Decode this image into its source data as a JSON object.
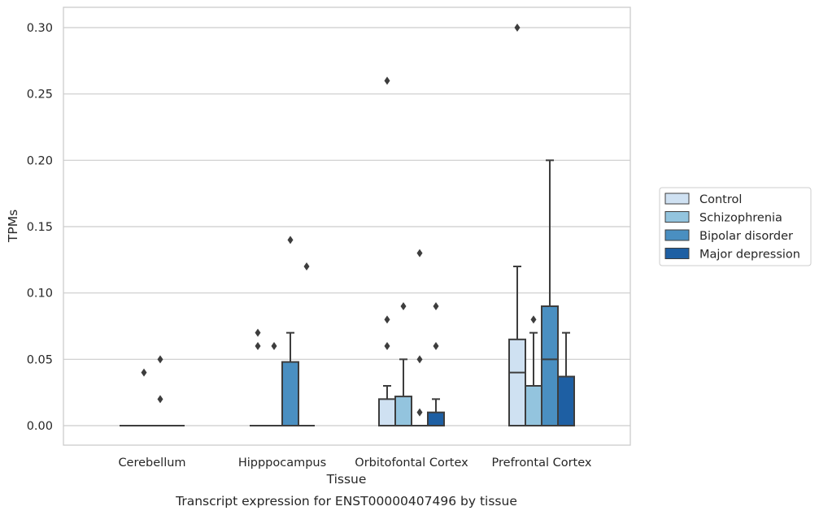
{
  "chart_data": {
    "type": "box",
    "xlabel": "Tissue",
    "ylabel": "TPMs",
    "caption": "Transcript expression for ENST00000407496 by tissue",
    "ylim": [
      -0.015,
      0.315
    ],
    "yticks": [
      0.0,
      0.05,
      0.1,
      0.15,
      0.2,
      0.25,
      0.3
    ],
    "ytick_labels": [
      "0.00",
      "0.05",
      "0.10",
      "0.15",
      "0.20",
      "0.25",
      "0.30"
    ],
    "grid": "horizontal",
    "legend_position": "right",
    "categories": [
      "Cerebellum",
      "Hipppocampus",
      "Orbitofontal Cortex",
      "Prefrontal Cortex"
    ],
    "series": [
      {
        "name": "Control",
        "color": "#cfe1f2",
        "boxes": [
          {
            "q1": 0,
            "median": 0,
            "q3": 0,
            "whisker_low": 0,
            "whisker_high": 0,
            "outliers": []
          },
          {
            "q1": 0,
            "median": 0,
            "q3": 0,
            "whisker_low": 0,
            "whisker_high": 0,
            "outliers": [
              0.06,
              0.07
            ]
          },
          {
            "q1": 0,
            "median": 0,
            "q3": 0.02,
            "whisker_low": 0,
            "whisker_high": 0.03,
            "outliers": [
              0.06,
              0.08,
              0.26
            ]
          },
          {
            "q1": 0,
            "median": 0.04,
            "q3": 0.065,
            "whisker_low": 0,
            "whisker_high": 0.12,
            "outliers": [
              0.3
            ]
          }
        ]
      },
      {
        "name": "Schizophrenia",
        "color": "#93c4de",
        "boxes": [
          {
            "q1": 0,
            "median": 0,
            "q3": 0,
            "whisker_low": 0,
            "whisker_high": 0,
            "outliers": [
              0.04
            ]
          },
          {
            "q1": 0,
            "median": 0,
            "q3": 0,
            "whisker_low": 0,
            "whisker_high": 0,
            "outliers": [
              0.06
            ]
          },
          {
            "q1": 0,
            "median": 0,
            "q3": 0.022,
            "whisker_low": 0,
            "whisker_high": 0.05,
            "outliers": [
              0.09
            ]
          },
          {
            "q1": 0,
            "median": 0,
            "q3": 0.03,
            "whisker_low": 0,
            "whisker_high": 0.07,
            "outliers": [
              0.08
            ]
          }
        ]
      },
      {
        "name": "Bipolar disorder",
        "color": "#4a8fc1",
        "boxes": [
          {
            "q1": 0,
            "median": 0,
            "q3": 0,
            "whisker_low": 0,
            "whisker_high": 0,
            "outliers": [
              0.02,
              0.05
            ]
          },
          {
            "q1": 0,
            "median": 0,
            "q3": 0.048,
            "whisker_low": 0,
            "whisker_high": 0.07,
            "outliers": [
              0.14
            ]
          },
          {
            "q1": 0,
            "median": 0,
            "q3": 0,
            "whisker_low": 0,
            "whisker_high": 0,
            "outliers": [
              0.01,
              0.05,
              0.13
            ]
          },
          {
            "q1": 0,
            "median": 0.05,
            "q3": 0.09,
            "whisker_low": 0,
            "whisker_high": 0.2,
            "outliers": []
          }
        ]
      },
      {
        "name": "Major depression",
        "color": "#1e5fa3",
        "boxes": [
          {
            "q1": 0,
            "median": 0,
            "q3": 0,
            "whisker_low": 0,
            "whisker_high": 0,
            "outliers": []
          },
          {
            "q1": 0,
            "median": 0,
            "q3": 0,
            "whisker_low": 0,
            "whisker_high": 0,
            "outliers": [
              0.12
            ]
          },
          {
            "q1": 0,
            "median": 0,
            "q3": 0.01,
            "whisker_low": 0,
            "whisker_high": 0.02,
            "outliers": [
              0.06,
              0.09
            ]
          },
          {
            "q1": 0,
            "median": 0,
            "q3": 0.037,
            "whisker_low": 0,
            "whisker_high": 0.07,
            "outliers": []
          }
        ]
      }
    ]
  },
  "colors": {
    "axes_frame": "#cccccc",
    "gridline": "#cccccc",
    "box_edge": "#3d3d3d"
  }
}
